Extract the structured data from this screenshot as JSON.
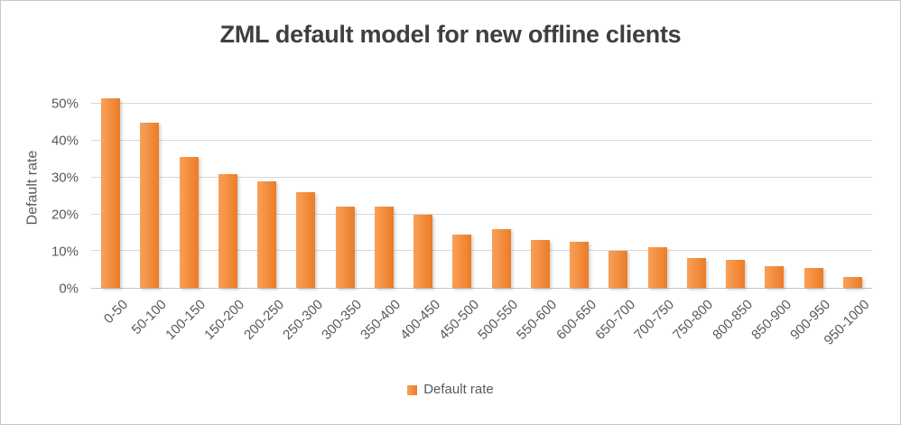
{
  "chart_data": {
    "type": "bar",
    "title": "ZML default model for new offline clients",
    "categories": [
      "0-50",
      "50-100",
      "100-150",
      "150-200",
      "200-250",
      "250-300",
      "300-350",
      "350-400",
      "400-450",
      "450-500",
      "500-550",
      "550-600",
      "600-650",
      "650-700",
      "700-750",
      "750-800",
      "800-850",
      "850-900",
      "900-950",
      "950-1000"
    ],
    "series": [
      {
        "name": "Default rate",
        "values": [
          51.5,
          45,
          35.5,
          31,
          29,
          26,
          22,
          22,
          20,
          14.5,
          16,
          13,
          12.5,
          10,
          11,
          8,
          7.5,
          6,
          5.5,
          3
        ]
      }
    ],
    "xlabel": "",
    "ylabel": "Default rate",
    "ylim": [
      0,
      55
    ],
    "yticks": [
      {
        "label": "0%",
        "value": 0
      },
      {
        "label": "10%",
        "value": 10
      },
      {
        "label": "20%",
        "value": 20
      },
      {
        "label": "30%",
        "value": 30
      },
      {
        "label": "40%",
        "value": 40
      },
      {
        "label": "50%",
        "value": 50
      }
    ],
    "grid": true,
    "legend_position": "bottom",
    "legend_label": "Default rate"
  },
  "colors": {
    "bar_gradient_left": "#f9a058",
    "bar_gradient_right": "#ec7c26",
    "title_text": "#3f3f3f",
    "axis_text": "#595959",
    "gridline": "#d9d9d9",
    "axis_line": "#c6c6c6"
  }
}
